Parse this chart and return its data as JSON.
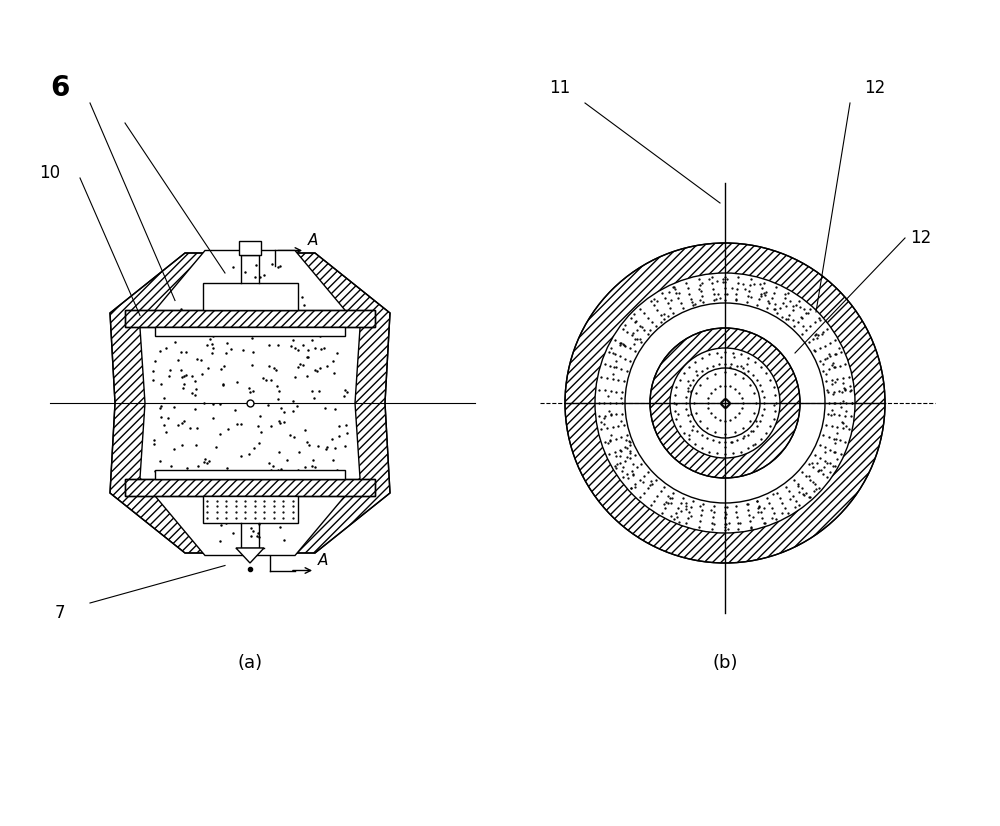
{
  "bg_color": "#ffffff",
  "line_color": "#000000",
  "label_6": "6",
  "label_7": "7",
  "label_10": "10",
  "label_11": "11",
  "label_12a": "12",
  "label_12b": "12",
  "label_A_top": "A",
  "label_A_bot": "A",
  "label_a": "(a)",
  "label_b": "(b)",
  "fig_width": 10.0,
  "fig_height": 8.26,
  "dpi": 100
}
